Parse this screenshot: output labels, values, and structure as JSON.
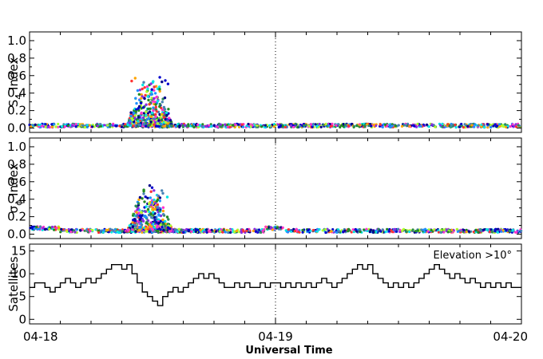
{
  "chart_data": [
    {
      "type": "scatter",
      "panel": "s4",
      "ylabel_main": "S",
      "ylabel_sub": "4",
      "ylabel_rest": "Index",
      "ylim": [
        -0.05,
        1.1
      ],
      "yticks": [
        0.0,
        0.2,
        0.4,
        0.6,
        0.8,
        1.0
      ],
      "ytick_labels": [
        "0.0",
        "0.2",
        "0.4",
        "0.6",
        "0.8",
        "1.0"
      ],
      "x_unit": "hours since 04-18 00:00 UT",
      "xlim": [
        0,
        48
      ],
      "baseline": 0.02,
      "event_window_hours": [
        9.5,
        14.0
      ],
      "peak_value": 0.59,
      "series_colors": [
        "#00e5e5",
        "#228b22",
        "#1e90ff",
        "#ff33cc",
        "#0000cc",
        "#8a2be2",
        "#ff3333",
        "#4682b4",
        "#00008b",
        "#ffa500",
        "#2e8b57",
        "#adff2f"
      ],
      "grid": false
    },
    {
      "type": "scatter",
      "panel": "sigma_phi",
      "ylabel_main": "σ",
      "ylabel_sub": "ϕ",
      "ylabel_rest": "Index",
      "ylim": [
        -0.05,
        1.1
      ],
      "yticks": [
        0.0,
        0.2,
        0.4,
        0.6,
        0.8,
        1.0
      ],
      "ytick_labels": [
        "0.0",
        "0.2",
        "0.4",
        "0.6",
        "0.8",
        "1.0"
      ],
      "x_unit": "hours since 04-18 00:00 UT",
      "xlim": [
        0,
        48
      ],
      "baseline": 0.03,
      "event_window_hours": [
        9.5,
        14.0
      ],
      "peak_value": 0.5,
      "series_colors": [
        "#00e5e5",
        "#228b22",
        "#1e90ff",
        "#ff33cc",
        "#0000cc",
        "#8a2be2",
        "#ff3333",
        "#4682b4",
        "#00008b",
        "#ffa500",
        "#2e8b57",
        "#adff2f"
      ],
      "grid": false
    },
    {
      "type": "line",
      "panel": "satellites",
      "ylabel": "Satellites",
      "annotation": "Elevation >10°",
      "ylim": [
        -1,
        16.5
      ],
      "yticks": [
        0,
        5,
        10,
        15
      ],
      "ytick_labels": [
        "0",
        "5",
        "10",
        "15"
      ],
      "step": true,
      "x_unit": "hours since 04-18 00:00 UT",
      "x": [
        0,
        0.5,
        1,
        1.5,
        2,
        2.5,
        3,
        3.5,
        4,
        4.5,
        5,
        5.5,
        6,
        6.5,
        7,
        7.5,
        8,
        8.5,
        9,
        9.5,
        10,
        10.5,
        11,
        11.5,
        12,
        12.5,
        13,
        13.5,
        14,
        14.5,
        15,
        15.5,
        16,
        16.5,
        17,
        17.5,
        18,
        18.5,
        19,
        19.5,
        20,
        20.5,
        21,
        21.5,
        22,
        22.5,
        23,
        23.5,
        24,
        24.5,
        25,
        25.5,
        26,
        26.5,
        27,
        27.5,
        28,
        28.5,
        29,
        29.5,
        30,
        30.5,
        31,
        31.5,
        32,
        32.5,
        33,
        33.5,
        34,
        34.5,
        35,
        35.5,
        36,
        36.5,
        37,
        37.5,
        38,
        38.5,
        39,
        39.5,
        40,
        40.5,
        41,
        41.5,
        42,
        42.5,
        43,
        43.5,
        44,
        44.5,
        45,
        45.5,
        46,
        46.5,
        47,
        47.5
      ],
      "y": [
        7,
        8,
        8,
        7,
        6,
        7,
        8,
        9,
        8,
        7,
        8,
        9,
        8,
        9,
        10,
        11,
        12,
        12,
        11,
        12,
        10,
        8,
        6,
        5,
        4,
        3,
        5,
        6,
        7,
        6,
        7,
        8,
        9,
        10,
        9,
        10,
        9,
        8,
        7,
        7,
        8,
        7,
        8,
        7,
        7,
        8,
        7,
        8,
        8,
        7,
        8,
        7,
        8,
        7,
        8,
        7,
        8,
        9,
        8,
        7,
        8,
        9,
        10,
        11,
        12,
        11,
        12,
        10,
        9,
        8,
        7,
        8,
        7,
        8,
        7,
        8,
        9,
        10,
        11,
        12,
        11,
        10,
        9,
        10,
        9,
        8,
        9,
        8,
        7,
        8,
        7,
        8,
        7,
        8,
        7,
        7
      ],
      "grid": false
    },
    {
      "type": "axis",
      "xlabel": "Universal Time",
      "xticks": [
        0,
        24,
        48
      ],
      "xtick_labels": [
        "04-18",
        "04-19",
        "04-20"
      ],
      "reference_line_x": 24
    }
  ]
}
